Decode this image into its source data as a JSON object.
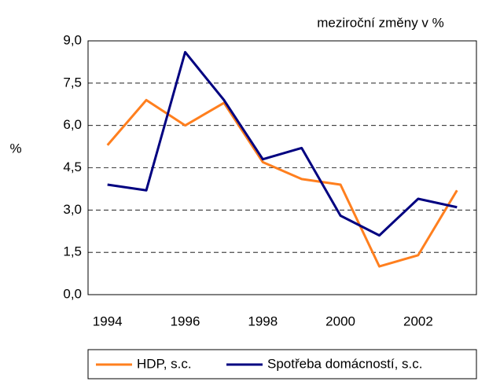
{
  "chart_data": {
    "type": "line",
    "subtitle": "meziroční změny v %",
    "y_label": "%",
    "categories": [
      "1994",
      null,
      "1996",
      null,
      "1998",
      null,
      "2000",
      null,
      "2002",
      null
    ],
    "series": [
      {
        "name": "HDP, s.c.",
        "color": "#ff7f1e",
        "values": [
          5.3,
          6.9,
          6.0,
          6.8,
          4.7,
          4.1,
          3.9,
          1.0,
          1.4,
          3.7
        ]
      },
      {
        "name": "Spotřeba domácností, s.c.",
        "color": "#000080",
        "values": [
          3.9,
          3.7,
          8.6,
          6.9,
          4.8,
          5.2,
          2.8,
          2.1,
          3.4,
          3.1
        ]
      }
    ],
    "ylim": [
      0,
      9
    ],
    "yticks": [
      {
        "value": 0,
        "label": "0,0"
      },
      {
        "value": 1.5,
        "label": "1,5"
      },
      {
        "value": 3,
        "label": "3,0"
      },
      {
        "value": 4.5,
        "label": "4,5"
      },
      {
        "value": 6,
        "label": "6,0"
      },
      {
        "value": 7.5,
        "label": "7,5"
      },
      {
        "value": 9,
        "label": "9,0"
      }
    ],
    "grid": true
  }
}
